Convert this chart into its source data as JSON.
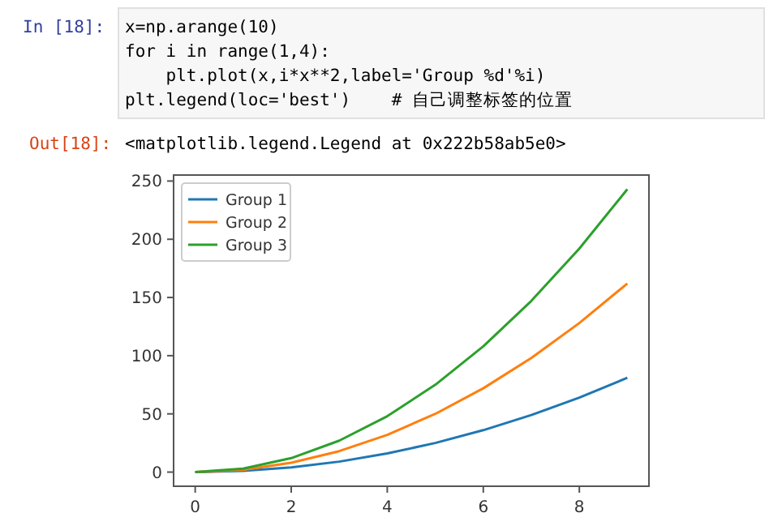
{
  "chart_data": {
    "type": "line",
    "x": [
      0,
      1,
      2,
      3,
      4,
      5,
      6,
      7,
      8,
      9
    ],
    "series": [
      {
        "name": "Group 1",
        "color": "#1f77b4",
        "values": [
          0,
          1,
          4,
          9,
          16,
          25,
          36,
          49,
          64,
          81
        ]
      },
      {
        "name": "Group 2",
        "color": "#ff7f0e",
        "values": [
          0,
          2,
          8,
          18,
          32,
          50,
          72,
          98,
          128,
          162
        ]
      },
      {
        "name": "Group 3",
        "color": "#2ca02c",
        "values": [
          0,
          3,
          12,
          27,
          48,
          75,
          108,
          147,
          192,
          243
        ]
      }
    ],
    "xlim": [
      -0.45,
      9.45
    ],
    "ylim": [
      -12.15,
      255.15
    ],
    "xticks": [
      0,
      2,
      4,
      6,
      8
    ],
    "yticks": [
      0,
      50,
      100,
      150,
      200,
      250
    ],
    "legend": "top left",
    "grid": false,
    "annotations": [
      "In [18]:",
      "x=np.arange(10)",
      "for i in range(1,4):",
      "    plt.plot(x,i*x**2,label='Group %d'%i)",
      "plt.legend(loc='best')    # 自己调整标签的位置",
      "Out[18]:",
      "<matplotlib.legend.Legend at 0x222b58ab5e0>"
    ]
  }
}
